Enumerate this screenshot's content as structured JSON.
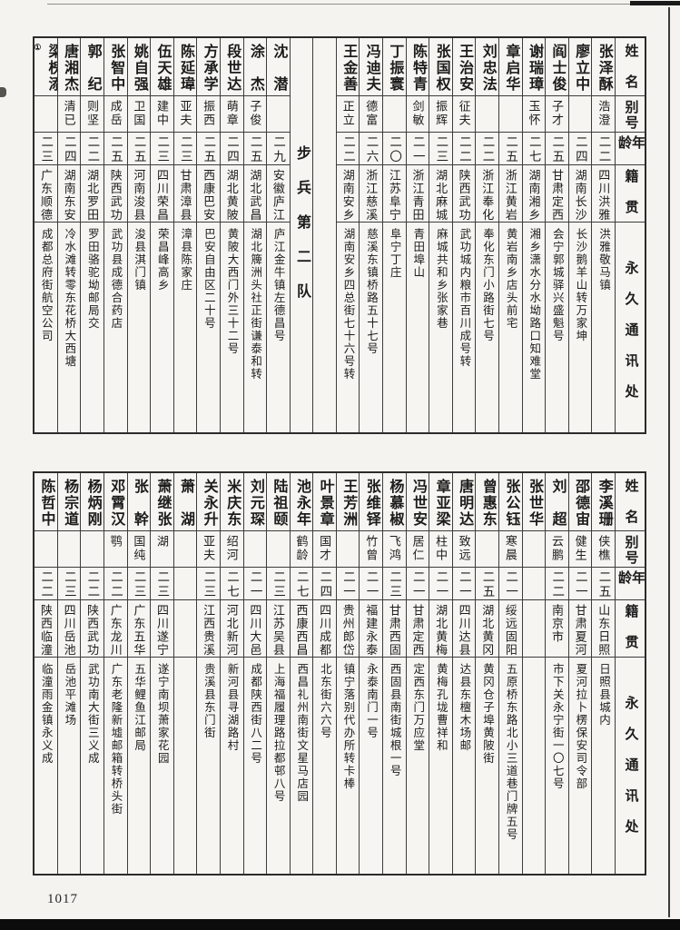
{
  "page": {
    "number": "1017"
  },
  "colors": {
    "paper": "#f4f3ef",
    "ink": "#1c1c1c",
    "rule": "#3c3c3c"
  },
  "headers": {
    "name": "姓　名",
    "byname": "别号",
    "age": "年龄",
    "native": "籍　贯",
    "address": "永　久　通　讯　处"
  },
  "unit_label": "步　兵　第　二　队",
  "tables": {
    "top": {
      "columns": [
        {
          "name": "张泽酥",
          "byname": "浩澄",
          "age": "二二",
          "native": "四川洪雅",
          "address": "洪雅敬马镇"
        },
        {
          "name": "廖立中",
          "byname": "",
          "age": "二四",
          "native": "湖南长沙",
          "address": "长沙鹅羊山转万家坤"
        },
        {
          "name": "阎士俊",
          "byname": "子才",
          "age": "二五",
          "native": "甘肃定西",
          "address": "会宁郭城驿兴盛魁号"
        },
        {
          "name": "谢瑞璋",
          "byname": "玉怀",
          "age": "二七",
          "native": "湖南湘乡",
          "address": "湘乡潇水分水坳路口知难堂"
        },
        {
          "name": "章启华",
          "byname": "",
          "age": "二五",
          "native": "浙江黄岩",
          "address": "黄岩南乡店头前宅"
        },
        {
          "name": "刘忠法",
          "byname": "",
          "age": "二二",
          "native": "浙江奉化",
          "address": "奉化东门小路街七号"
        },
        {
          "name": "王治安",
          "byname": "征夫",
          "age": "二二",
          "native": "陕西武功",
          "address": "武功城内粮市百川成号转"
        },
        {
          "name": "张国权",
          "byname": "振辉",
          "age": "二三",
          "native": "湖北麻城",
          "address": "麻城共和乡张家巷"
        },
        {
          "name": "陈特青",
          "byname": "剑敏",
          "age": "二一",
          "native": "浙江青田",
          "address": "青田埠山"
        },
        {
          "name": "丁振寰",
          "byname": "",
          "age": "二〇",
          "native": "江苏阜宁",
          "address": "阜宁丁庄"
        },
        {
          "name": "冯迪夫",
          "byname": "德富",
          "age": "二六",
          "native": "浙江慈溪",
          "address": "慈溪东镇桥路五十七号"
        },
        {
          "name": "王金善",
          "byname": "正立",
          "age": "二二",
          "native": "湖南安乡",
          "address": "湖南安乡四总街七十六号转"
        },
        {
          "type": "spacer"
        },
        {
          "type": "unit"
        },
        {
          "name": "沈　潜",
          "byname": "",
          "age": "二九",
          "native": "安徽庐江",
          "address": "庐江金牛镇左德昌号"
        },
        {
          "name": "涂　杰",
          "byname": "子俊",
          "age": "二五",
          "native": "湖北武昌",
          "address": "湖北簰洲头社正街谦泰和转"
        },
        {
          "name": "段世达",
          "byname": "萌章",
          "age": "二四",
          "native": "湖北黄陂",
          "address": "黄陂大西门外三十二号"
        },
        {
          "name": "方承学",
          "byname": "振西",
          "age": "二五",
          "native": "西康巴安",
          "address": "巴安自由区二十号"
        },
        {
          "name": "陈延瑋",
          "byname": "亚夫",
          "age": "二三",
          "native": "甘肃漳县",
          "address": "漳县陈家庄"
        },
        {
          "name": "伍天雄",
          "byname": "建中",
          "age": "二三",
          "native": "四川荣昌",
          "address": "荣昌峰高乡"
        },
        {
          "name": "姚自强",
          "byname": "卫国",
          "age": "二五",
          "native": "河南浚县",
          "address": "浚县淇门镇"
        },
        {
          "name": "张智中",
          "byname": "成岳",
          "age": "二五",
          "native": "陕西武功",
          "address": "武功县成德合药店"
        },
        {
          "name": "郭　纪",
          "byname": "则坚",
          "age": "二二",
          "native": "湖北罗田",
          "address": "罗田骆驼坳邮局交"
        },
        {
          "name": "唐湘杰",
          "byname": "清已",
          "age": "二四",
          "native": "湖南东安",
          "address": "冷水滩转零东花桥大西塘"
        },
        {
          "name": "梁槐添",
          "note": "①",
          "byname": "",
          "age": "二三",
          "native": "广东顺德",
          "address": "成都总府街航空公司"
        }
      ]
    },
    "bottom": {
      "columns": [
        {
          "name": "李溪珊",
          "byname": "侠樵",
          "age": "二五",
          "native": "山东日照",
          "address": "日照县城内"
        },
        {
          "name": "邵德宙",
          "byname": "健生",
          "age": "二一",
          "native": "甘肃夏河",
          "address": "夏河拉卜楞保安司令部"
        },
        {
          "name": "刘　超",
          "byname": "云鹏",
          "age": "二二",
          "native": "南京市",
          "address": "市下关永宁街一〇七号"
        },
        {
          "name": "张世华",
          "byname": "",
          "age": "",
          "native": "",
          "address": ""
        },
        {
          "name": "张公钰",
          "byname": "寒晨",
          "age": "二一",
          "native": "绥远固阳",
          "address": "五原桥东路北小三道巷门牌五号"
        },
        {
          "name": "曾惠东",
          "byname": "",
          "age": "二五",
          "native": "湖北黄冈",
          "address": "黄冈仓子埠黄陂街"
        },
        {
          "name": "唐明达",
          "byname": "致远",
          "age": "二一",
          "native": "四川达县",
          "address": "达县东檀木场邮"
        },
        {
          "name": "章亚梁",
          "byname": "柱中",
          "age": "二一",
          "native": "湖北黄梅",
          "address": "黄梅孔垅曹祥和"
        },
        {
          "name": "冯世安",
          "byname": "居仁",
          "age": "二一",
          "native": "甘肃定西",
          "address": "定西东门万应堂"
        },
        {
          "name": "杨慕椒",
          "byname": "飞鸿",
          "age": "二三",
          "native": "甘肃西固",
          "address": "西固县南街城根一号"
        },
        {
          "name": "张维铎",
          "byname": "竹曾",
          "age": "二一",
          "native": "福建永泰",
          "address": "永泰南门一号"
        },
        {
          "name": "王芳洲",
          "byname": "",
          "age": "二一",
          "native": "贵州郎岱",
          "address": "镇宁落别代办所转卡棒"
        },
        {
          "name": "叶景章",
          "byname": "国才",
          "age": "二四",
          "native": "四川成都",
          "address": "北东街六六号"
        },
        {
          "name": "池永年",
          "byname": "鹤龄",
          "age": "二七",
          "native": "西康西昌",
          "address": "西昌礼州南街文星马店园"
        },
        {
          "name": "陆祖颐",
          "byname": "",
          "age": "二三",
          "native": "江苏吴县",
          "address": "上海福履理路拉都邨八号"
        },
        {
          "name": "刘元琛",
          "byname": "",
          "age": "二一",
          "native": "四川大邑",
          "address": "成都陕西街八二号"
        },
        {
          "name": "米庆东",
          "byname": "绍河",
          "age": "二七",
          "native": "河北新河",
          "address": "新河县寻湖路村"
        },
        {
          "name": "关永升",
          "byname": "亚夫",
          "age": "二三",
          "native": "江西贵溪",
          "address": "贵溪县东门街"
        },
        {
          "name": "萧　湖",
          "byname": "",
          "age": "",
          "native": "",
          "address": ""
        },
        {
          "name": "萧继张",
          "byname": "湖",
          "age": "二三",
          "native": "四川遂宁",
          "address": "遂宁南坝萧家花园"
        },
        {
          "name": "张　幹",
          "byname": "国纯",
          "age": "二三",
          "native": "广东五华",
          "address": "五华鲤鱼江邮局"
        },
        {
          "name": "邓霄汉",
          "byname": "鹗",
          "age": "二二",
          "native": "广东龙川",
          "address": "广东老隆新墟邮箱转桥头街"
        },
        {
          "name": "杨炳刚",
          "byname": "",
          "age": "二二",
          "native": "陕西武功",
          "address": "武功南大街三义成"
        },
        {
          "name": "杨宗道",
          "byname": "",
          "age": "二三",
          "native": "四川岳池",
          "address": "岳池平滩场"
        },
        {
          "name": "陈哲中",
          "byname": "",
          "age": "二二",
          "native": "陕西临潼",
          "address": "临潼雨金镇永义成"
        }
      ]
    }
  }
}
